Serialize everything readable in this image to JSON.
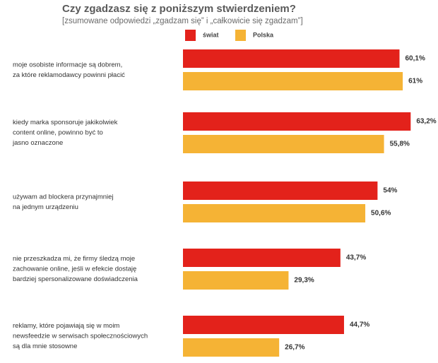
{
  "chart_data": {
    "type": "bar",
    "orientation": "horizontal",
    "title": "Czy zgadzasz się z poniższym stwierdzeniem?",
    "subtitle": "[zsumowane odpowiedzi „zgadzam się” i „całkowicie się zgadzam”]",
    "categories": [
      [
        "moje osobiste informacje są dobrem,",
        "za które reklamodawcy powinni płacić"
      ],
      [
        "kiedy marka sponsoruje jakikolwiek",
        "content online, powinno być to",
        "jasno oznaczone"
      ],
      [
        "używam ad blockera przynajmniej",
        "na jednym urządzeniu"
      ],
      [
        "nie przeszkadza mi, że firmy śledzą moje",
        "zachowanie online, jeśli w efekcie dostaję",
        "bardziej spersonalizowane doświadczenia"
      ],
      [
        "reklamy, które pojawiają się w moim",
        "newsfeedzie w serwisach społecznościowych",
        "są dla mnie stosowne"
      ]
    ],
    "series": [
      {
        "name": "świat",
        "color": "#e3221b",
        "values": [
          60.1,
          63.2,
          54,
          43.7,
          44.7
        ],
        "value_labels": [
          "60,1%",
          "63,2%",
          "54%",
          "43,7%",
          "44,7%"
        ]
      },
      {
        "name": "Polska",
        "color": "#f5b335",
        "values": [
          61,
          55.8,
          50.6,
          29.3,
          26.7
        ],
        "value_labels": [
          "61%",
          "55,8%",
          "50,6%",
          "29,3%",
          "26,7%"
        ]
      }
    ]
  }
}
